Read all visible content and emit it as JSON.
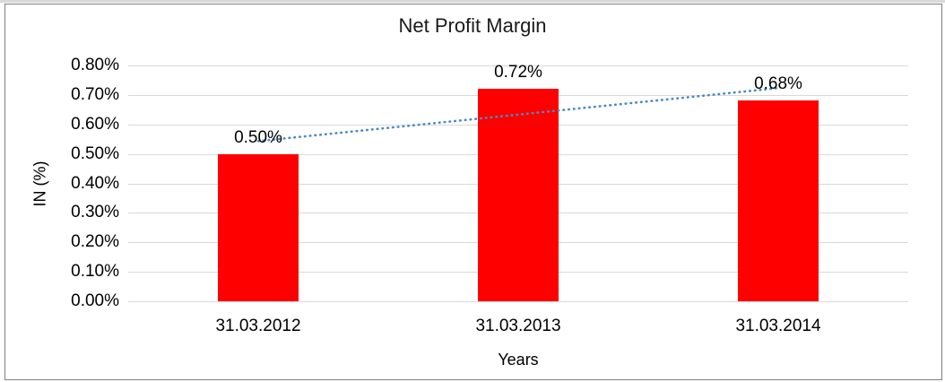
{
  "chart_data": {
    "type": "bar",
    "title": "Net Profit Margin",
    "xlabel": "Years",
    "ylabel": "IN (%)",
    "categories": [
      "31.03.2012",
      "31.03.2013",
      "31.03.2014"
    ],
    "series": [
      {
        "name": "Net Profit Margin",
        "values": [
          0.5,
          0.72,
          0.68
        ]
      }
    ],
    "data_labels": [
      "0.50%",
      "0.72%",
      "0.68%"
    ],
    "unit": "%",
    "ylim": [
      0,
      0.8
    ],
    "ytick_step": 0.1,
    "ytick_labels": [
      "0.00%",
      "0.10%",
      "0.20%",
      "0.30%",
      "0.40%",
      "0.50%",
      "0.60%",
      "0.70%",
      "0.80%"
    ],
    "grid": true,
    "legend": false,
    "colors": {
      "bar": "#ff0000",
      "gridline": "#d9d9d9",
      "axis_line": "#d9d9d9",
      "text": "#000000",
      "frame_border": "#7f7f7f",
      "trendline": "#4d88c4"
    },
    "trendline": {
      "type": "linear",
      "style": "dotted"
    }
  }
}
